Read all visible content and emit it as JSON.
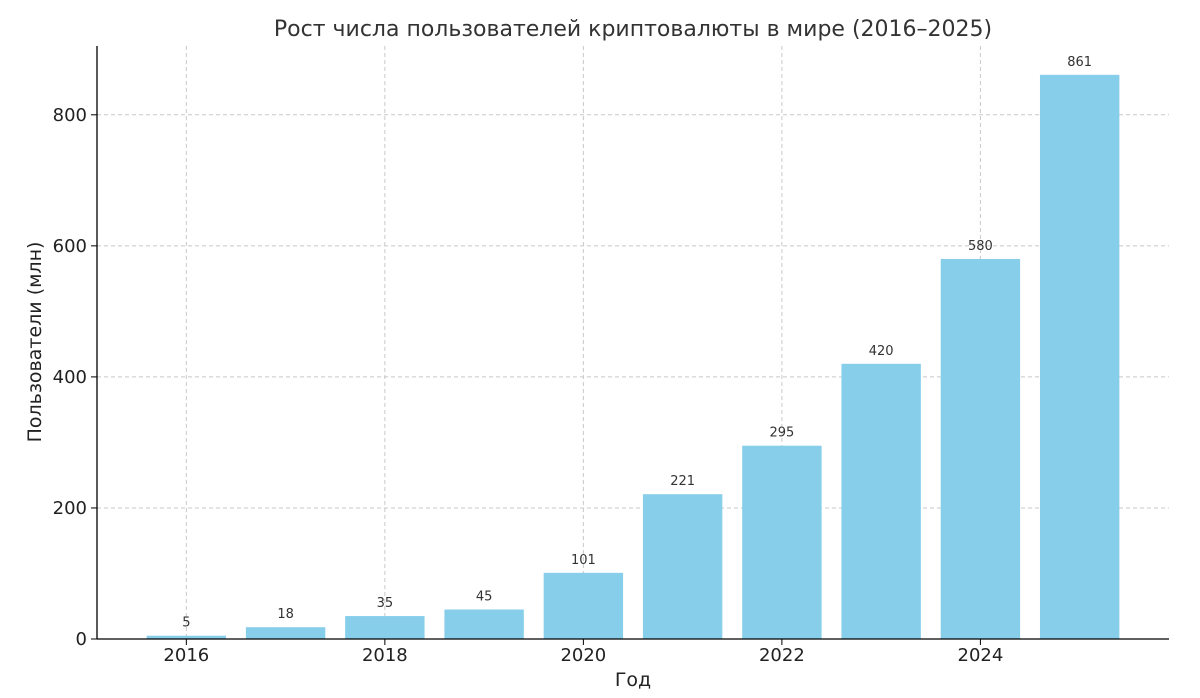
{
  "chart_data": {
    "type": "bar",
    "title": "Рост числа пользователей криптовалюты в мире (2016–2025)",
    "xlabel": "Год",
    "ylabel": "Пользователи (млн)",
    "categories": [
      2016,
      2017,
      2018,
      2019,
      2020,
      2021,
      2022,
      2023,
      2024,
      2025
    ],
    "values": [
      5,
      18,
      35,
      45,
      101,
      221,
      295,
      420,
      580,
      861
    ],
    "data_labels": [
      "5",
      "18",
      "35",
      "45",
      "101",
      "221",
      "295",
      "420",
      "580",
      "861"
    ],
    "x_ticks": [
      2016,
      2018,
      2020,
      2022,
      2024
    ],
    "x_tick_labels": [
      "2016",
      "2018",
      "2020",
      "2022",
      "2024"
    ],
    "y_ticks": [
      0,
      200,
      400,
      600,
      800
    ],
    "y_tick_labels": [
      "0",
      "200",
      "400",
      "600",
      "800"
    ],
    "ylim": [
      0,
      905
    ],
    "xlim": [
      2015.1,
      2025.9
    ],
    "grid": true,
    "bar_color": "#87ceeb",
    "grid_color": "#c8c8c8",
    "text_color": "#333333"
  }
}
